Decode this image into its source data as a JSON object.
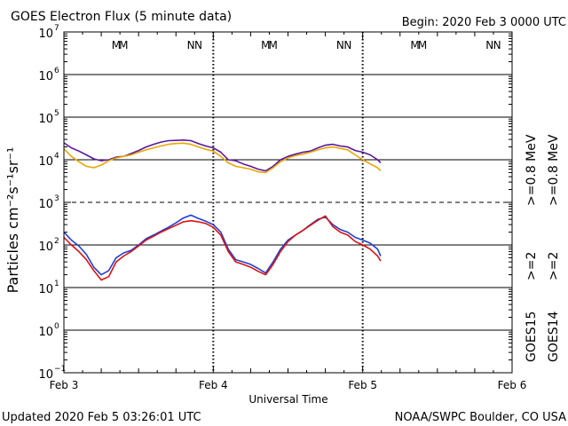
{
  "header": {
    "title": "GOES Electron Flux (5 minute data)",
    "begin": "Begin: 2020 Feb 3 0000 UTC"
  },
  "footer": {
    "updated": "Updated 2020 Feb  5 03:26:01 UTC",
    "source": "NOAA/SWPC Boulder, CO USA"
  },
  "colors": {
    "goes15_high": "#5a189a",
    "goes14_high": "#e6a700",
    "goes15_low": "#1f3fd6",
    "goes14_low": "#e01010",
    "marker_m": "#cc0000",
    "marker_n_red": "#cc0000",
    "marker_blue": "#1f3fd6"
  },
  "chart_data": {
    "type": "line",
    "title": "GOES Electron Flux (5 minute data)",
    "xlabel": "Universal Time",
    "ylabel": "Particles cm⁻²s⁻¹sr⁻¹",
    "x_ticks": [
      "Feb 3",
      "Feb 4",
      "Feb 5",
      "Feb 6"
    ],
    "xlim_days": [
      0,
      3
    ],
    "y_scale": "log",
    "ylim": [
      0.1,
      10000000
    ],
    "y_ticks": [
      {
        "base": "10",
        "exp": "7"
      },
      {
        "base": "10",
        "exp": "6"
      },
      {
        "base": "10",
        "exp": "5"
      },
      {
        "base": "10",
        "exp": "4"
      },
      {
        "base": "10",
        "exp": "3"
      },
      {
        "base": "10",
        "exp": "2"
      },
      {
        "base": "10",
        "exp": "1"
      },
      {
        "base": "10",
        "exp": "0"
      },
      {
        "base": "10",
        "exp": "−1"
      }
    ],
    "threshold_line": 1000,
    "markers": [
      {
        "day": 0.35,
        "label": "M",
        "color": "marker_m"
      },
      {
        "day": 0.4,
        "label": "M",
        "color": "marker_blue"
      },
      {
        "day": 0.85,
        "label": "N",
        "color": "marker_n_red"
      },
      {
        "day": 0.9,
        "label": "N",
        "color": "marker_blue"
      },
      {
        "day": 1.35,
        "label": "M",
        "color": "marker_m"
      },
      {
        "day": 1.4,
        "label": "M",
        "color": "marker_blue"
      },
      {
        "day": 1.85,
        "label": "N",
        "color": "marker_n_red"
      },
      {
        "day": 1.9,
        "label": "N",
        "color": "marker_blue"
      },
      {
        "day": 2.35,
        "label": "M",
        "color": "marker_m"
      },
      {
        "day": 2.4,
        "label": "M",
        "color": "marker_blue"
      },
      {
        "day": 2.85,
        "label": "N",
        "color": "marker_n_red"
      },
      {
        "day": 2.9,
        "label": "N",
        "color": "marker_blue"
      }
    ],
    "series": [
      {
        "color": "goes15_high",
        "x": [
          0.0,
          0.05,
          0.1,
          0.15,
          0.2,
          0.25,
          0.3,
          0.35,
          0.4,
          0.45,
          0.5,
          0.55,
          0.6,
          0.65,
          0.7,
          0.75,
          0.8,
          0.85,
          0.9,
          0.95,
          1.0,
          1.05,
          1.1,
          1.15,
          1.2,
          1.25,
          1.3,
          1.35,
          1.4,
          1.45,
          1.5,
          1.55,
          1.6,
          1.65,
          1.7,
          1.75,
          1.8,
          1.85,
          1.9,
          1.95,
          2.0,
          2.05,
          2.1,
          2.12
        ],
        "y": [
          25000,
          19000,
          16000,
          13000,
          10500,
          9500,
          10000,
          11500,
          12000,
          14000,
          16500,
          20000,
          23000,
          26000,
          28000,
          28500,
          29000,
          28000,
          24000,
          21000,
          19000,
          15000,
          10000,
          9500,
          8000,
          7000,
          6000,
          5500,
          7000,
          10000,
          12000,
          13500,
          15000,
          16000,
          19000,
          22000,
          23000,
          21000,
          20000,
          16500,
          15000,
          13000,
          10000,
          8500
        ]
      },
      {
        "color": "goes14_high",
        "x": [
          0.0,
          0.05,
          0.1,
          0.15,
          0.2,
          0.25,
          0.3,
          0.35,
          0.4,
          0.45,
          0.5,
          0.55,
          0.6,
          0.65,
          0.7,
          0.75,
          0.8,
          0.85,
          0.9,
          0.95,
          1.0,
          1.05,
          1.1,
          1.15,
          1.2,
          1.25,
          1.3,
          1.35,
          1.4,
          1.45,
          1.5,
          1.55,
          1.6,
          1.65,
          1.7,
          1.75,
          1.8,
          1.85,
          1.9,
          1.95,
          2.0,
          2.05,
          2.1,
          2.12
        ],
        "y": [
          18000,
          12000,
          9000,
          7000,
          6500,
          7500,
          9500,
          11000,
          12000,
          13000,
          15000,
          17000,
          19000,
          21000,
          23000,
          24000,
          24500,
          23000,
          20000,
          17500,
          16000,
          12000,
          8500,
          7000,
          6500,
          6000,
          5200,
          5000,
          6500,
          9000,
          11000,
          12500,
          13500,
          15000,
          17000,
          19000,
          20000,
          18500,
          17000,
          13000,
          10000,
          8000,
          6500,
          5500
        ]
      },
      {
        "color": "goes15_low",
        "x": [
          0.0,
          0.05,
          0.1,
          0.15,
          0.2,
          0.25,
          0.3,
          0.35,
          0.4,
          0.45,
          0.5,
          0.55,
          0.6,
          0.65,
          0.7,
          0.75,
          0.8,
          0.85,
          0.9,
          0.95,
          1.0,
          1.05,
          1.1,
          1.15,
          1.2,
          1.25,
          1.3,
          1.35,
          1.4,
          1.45,
          1.5,
          1.55,
          1.6,
          1.65,
          1.7,
          1.75,
          1.8,
          1.85,
          1.9,
          1.95,
          2.0,
          2.05,
          2.1,
          2.12
        ],
        "y": [
          200,
          130,
          95,
          60,
          30,
          20,
          25,
          50,
          65,
          75,
          100,
          140,
          170,
          210,
          260,
          330,
          430,
          500,
          420,
          360,
          300,
          200,
          80,
          45,
          40,
          35,
          28,
          22,
          40,
          80,
          130,
          170,
          220,
          300,
          400,
          450,
          300,
          230,
          200,
          150,
          130,
          110,
          80,
          55
        ]
      },
      {
        "color": "goes14_low",
        "x": [
          0.0,
          0.05,
          0.1,
          0.15,
          0.2,
          0.25,
          0.3,
          0.35,
          0.4,
          0.45,
          0.5,
          0.55,
          0.6,
          0.65,
          0.7,
          0.75,
          0.8,
          0.85,
          0.9,
          0.95,
          1.0,
          1.05,
          1.1,
          1.15,
          1.2,
          1.25,
          1.3,
          1.35,
          1.4,
          1.45,
          1.5,
          1.55,
          1.6,
          1.65,
          1.7,
          1.75,
          1.8,
          1.85,
          1.9,
          1.95,
          2.0,
          2.05,
          2.1,
          2.12
        ],
        "y": [
          150,
          100,
          70,
          45,
          25,
          15,
          18,
          40,
          55,
          70,
          95,
          130,
          160,
          200,
          240,
          290,
          350,
          370,
          350,
          320,
          260,
          170,
          70,
          40,
          35,
          30,
          24,
          20,
          35,
          70,
          120,
          170,
          220,
          290,
          380,
          480,
          270,
          200,
          170,
          120,
          100,
          80,
          55,
          42
        ]
      }
    ],
    "side_legend": {
      "high_label_15": ">=0.8  MeV",
      "high_label_14": ">=0.8  MeV",
      "low_label_15": ">=2",
      "low_label_14": ">=2",
      "sat_15": "GOES15",
      "sat_14": "GOES14"
    }
  }
}
